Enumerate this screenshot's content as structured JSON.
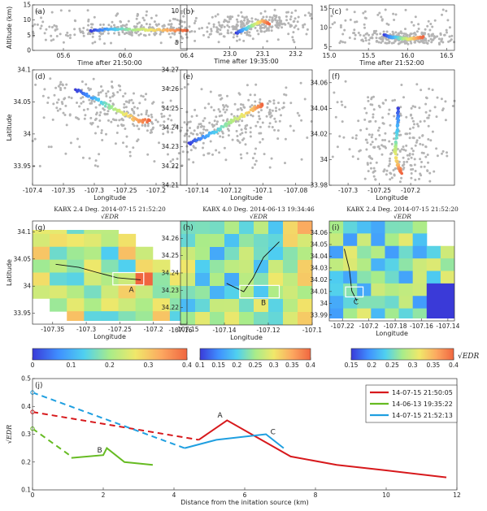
{
  "figure": {
    "colors": {
      "gray": "#b4b4b4",
      "axis": "#333333",
      "red": "#d7191c",
      "green": "#66bb22",
      "blue": "#1f9fe0"
    },
    "colormap": [
      "#3a3ad8",
      "#3f8fff",
      "#4fd0f0",
      "#a8ec8a",
      "#f0e86a",
      "#fca860",
      "#f06640"
    ]
  },
  "chart_data": [
    {
      "id": "a",
      "type": "scatter",
      "panel_label": "(a)",
      "xlabel": "Time after 21:50:00",
      "ylabel": "Altitude (km)",
      "xlim": [
        5.4,
        6.4
      ],
      "ylim": [
        0,
        15
      ],
      "xticks": [
        "05.6",
        "06.0",
        "06.4"
      ],
      "xtick_values": [
        5.6,
        6.0,
        6.4
      ],
      "yticks": [
        0,
        5,
        10,
        15
      ],
      "background_points": "gray",
      "colored_track": {
        "x": [
          5.78,
          5.85,
          5.92,
          6.0,
          6.1,
          6.2,
          6.3,
          6.4
        ],
        "y": [
          6.5,
          6.8,
          7.0,
          7.0,
          6.8,
          6.8,
          6.6,
          6.5
        ]
      }
    },
    {
      "id": "b",
      "type": "scatter",
      "panel_label": "(b)",
      "xlim": [
        22.85,
        23.25
      ],
      "ylim": [
        4,
        11
      ],
      "xticks": [
        "23.0",
        "23.1",
        "23.2"
      ],
      "xtick_values": [
        23.0,
        23.1,
        23.2
      ],
      "yticks": [
        5,
        10
      ],
      "xlabel": "Time after 19:35:00",
      "background_points": "gray",
      "colored_track": {
        "x": [
          23.02,
          23.04,
          23.06,
          23.08,
          23.1,
          23.12
        ],
        "y": [
          6.5,
          7.0,
          7.5,
          8.0,
          8.5,
          8.0
        ]
      }
    },
    {
      "id": "c",
      "type": "scatter",
      "panel_label": "(c)",
      "xlim": [
        15.0,
        16.6
      ],
      "ylim": [
        4,
        16
      ],
      "xticks": [
        "15.0",
        "15.5",
        "16.0",
        "16.5"
      ],
      "xtick_values": [
        15.0,
        15.5,
        16.0,
        16.5
      ],
      "yticks": [
        5,
        10,
        15
      ],
      "xlabel": "Time after 21:52:00",
      "background_points": "gray",
      "colored_track": {
        "x": [
          15.7,
          15.8,
          15.9,
          16.0,
          16.1,
          16.2
        ],
        "y": [
          8.0,
          7.5,
          7.2,
          7.0,
          7.2,
          7.5
        ]
      }
    },
    {
      "id": "d",
      "type": "scatter",
      "panel_label": "(d)",
      "xlabel": "Longitude",
      "ylabel": "Latitude",
      "xlim": [
        -107.4,
        -107.15
      ],
      "ylim": [
        33.92,
        34.1
      ],
      "xticks": [
        "-107.4",
        "-107.35",
        "-107.3",
        "-107.25",
        "-107.2"
      ],
      "xtick_values": [
        -107.4,
        -107.35,
        -107.3,
        -107.25,
        -107.2
      ],
      "yticks": [
        "33.95",
        "34",
        "34.05",
        "34.1"
      ],
      "ytick_values": [
        33.95,
        34.0,
        34.05,
        34.1
      ],
      "background_points": "gray",
      "colored_track": {
        "x": [
          -107.33,
          -107.31,
          -107.29,
          -107.27,
          -107.25,
          -107.23,
          -107.21
        ],
        "y": [
          34.07,
          34.06,
          34.05,
          34.04,
          34.03,
          34.02,
          34.02
        ]
      }
    },
    {
      "id": "e",
      "type": "scatter",
      "panel_label": "(e)",
      "xlabel": "Longitude",
      "xlim": [
        -107.15,
        -107.07
      ],
      "ylim": [
        34.21,
        34.27
      ],
      "xticks": [
        "-107.14",
        "-107.12",
        "-107.1",
        "-107.08"
      ],
      "xtick_values": [
        -107.14,
        -107.12,
        -107.1,
        -107.08
      ],
      "yticks": [
        "34.21",
        "34.22",
        "34.23",
        "34.24",
        "34.25",
        "34.26",
        "34.27"
      ],
      "ytick_values": [
        34.21,
        34.22,
        34.23,
        34.24,
        34.25,
        34.26,
        34.27
      ],
      "background_points": "gray",
      "colored_track": {
        "x": [
          -107.145,
          -107.135,
          -107.125,
          -107.115,
          -107.105,
          -107.1
        ],
        "y": [
          34.232,
          34.235,
          34.24,
          34.245,
          34.25,
          34.252
        ]
      }
    },
    {
      "id": "f",
      "type": "scatter",
      "panel_label": "(f)",
      "xlabel": "Longitude",
      "xlim": [
        -107.33,
        -107.13
      ],
      "ylim": [
        33.98,
        34.07
      ],
      "xticks": [
        "-107.3",
        "-107.25",
        "-107.2"
      ],
      "xtick_values": [
        -107.3,
        -107.25,
        -107.2
      ],
      "yticks": [
        "33.98",
        "34",
        "34.02",
        "34.04",
        "34.06"
      ],
      "ytick_values": [
        33.98,
        34.0,
        34.02,
        34.04,
        34.06
      ],
      "background_points": "gray",
      "colored_track": {
        "x": [
          -107.22,
          -107.22,
          -107.223,
          -107.225,
          -107.22,
          -107.215
        ],
        "y": [
          34.04,
          34.03,
          34.015,
          34.005,
          33.995,
          33.99
        ]
      }
    },
    {
      "id": "g",
      "type": "heatmap",
      "panel_label": "(g)",
      "title": "KABX 2.4 Deg. 2014-07-15 21:52:20",
      "xlabel": "Longitude",
      "ylabel": "Latitude",
      "xlim": [
        -107.38,
        -107.15
      ],
      "ylim": [
        33.93,
        34.12
      ],
      "xticks": [
        "-107.35",
        "-107.3",
        "-107.25",
        "-107.2",
        "-107.15"
      ],
      "xtick_values": [
        -107.35,
        -107.3,
        -107.25,
        -107.2,
        -107.15
      ],
      "yticks": [
        "33.95",
        "34",
        "34.05",
        "34.1"
      ],
      "ytick_values": [
        33.95,
        34.0,
        34.05,
        34.1
      ],
      "box_label": "A",
      "colorbar": {
        "ticks": [
          "0",
          "0.1",
          "0.2",
          "0.3",
          "0.4"
        ],
        "range": [
          0,
          0.4
        ]
      }
    },
    {
      "id": "h",
      "type": "heatmap",
      "panel_label": "(h)",
      "title": "KABX 4.0 Deg. 2014-06-13 19:34:46",
      "xlabel": "Longitude",
      "xlim": [
        -107.16,
        -107.1
      ],
      "ylim": [
        34.21,
        34.27
      ],
      "xticks": [
        "-107.16",
        "-107.14",
        "-107.12",
        "-107.1"
      ],
      "xtick_values": [
        -107.16,
        -107.14,
        -107.12,
        -107.1
      ],
      "yticks": [
        "34.22",
        "34.23",
        "34.24",
        "34.25",
        "34.26"
      ],
      "ytick_values": [
        34.22,
        34.23,
        34.24,
        34.25,
        34.26
      ],
      "box_label": "B",
      "colorbar": {
        "ticks": [
          "0.1",
          "0.15",
          "0.2",
          "0.25",
          "0.3",
          "0.35",
          "0.4"
        ],
        "range": [
          0.1,
          0.4
        ]
      }
    },
    {
      "id": "i",
      "type": "heatmap",
      "panel_label": "(i)",
      "title": "KABX 2.4 Deg. 2014-07-15 21:52:20",
      "xlabel": "Longitude",
      "xlim": [
        -107.23,
        -107.135
      ],
      "ylim": [
        33.985,
        34.07
      ],
      "xticks": [
        "-107.22",
        "-107.2",
        "-107.18",
        "-107.16",
        "-107.14"
      ],
      "xtick_values": [
        -107.22,
        -107.2,
        -107.18,
        -107.16,
        -107.14
      ],
      "yticks": [
        "33.99",
        "34",
        "34.01",
        "34.02",
        "34.03",
        "34.04",
        "34.05",
        "34.06"
      ],
      "ytick_values": [
        33.99,
        34.0,
        34.01,
        34.02,
        34.03,
        34.04,
        34.05,
        34.06
      ],
      "box_label": "C",
      "colorbar": {
        "ticks": [
          "0.15",
          "0.2",
          "0.25",
          "0.3",
          "0.35",
          "0.4"
        ],
        "range": [
          0.15,
          0.4
        ]
      }
    },
    {
      "id": "j",
      "type": "line",
      "panel_label": "(j)",
      "xlabel": "Distance from the initation source (km)",
      "ylabel": "√EDR",
      "colorbar_label": "√EDR",
      "xlim": [
        0,
        12
      ],
      "ylim": [
        0.1,
        0.5
      ],
      "xticks": [
        0,
        2,
        4,
        6,
        8,
        10,
        12
      ],
      "yticks": [
        "0.1",
        "0.2",
        "0.3",
        "0.4",
        "0.5"
      ],
      "ytick_values": [
        0.1,
        0.2,
        0.3,
        0.4,
        0.5
      ],
      "legend_position": "top-right",
      "series": [
        {
          "name": "14-07-15 21:50:05",
          "color": "red",
          "dashed": {
            "x": [
              0,
              4.7
            ],
            "y": [
              0.38,
              0.28
            ]
          },
          "solid": {
            "x": [
              4.7,
              5.5,
              7.3,
              8.6,
              10,
              11.7
            ],
            "y": [
              0.28,
              0.35,
              0.22,
              0.19,
              0.17,
              0.145
            ]
          }
        },
        {
          "name": "14-06-13 19:35:22",
          "color": "green",
          "dashed": {
            "x": [
              0,
              1.1
            ],
            "y": [
              0.32,
              0.22
            ]
          },
          "solid": {
            "x": [
              1.1,
              2.0,
              2.1,
              2.6,
              3.4
            ],
            "y": [
              0.215,
              0.225,
              0.25,
              0.2,
              0.19
            ]
          }
        },
        {
          "name": "14-07-15 21:52:13",
          "color": "blue",
          "dashed": {
            "x": [
              0,
              4.3
            ],
            "y": [
              0.45,
              0.25
            ]
          },
          "solid": {
            "x": [
              4.3,
              5.2,
              6.6,
              7.1
            ],
            "y": [
              0.25,
              0.28,
              0.3,
              0.25
            ]
          }
        }
      ],
      "annotations": [
        {
          "text": "A",
          "x": 5.3,
          "y": 0.36
        },
        {
          "text": "B",
          "x": 1.9,
          "y": 0.235
        },
        {
          "text": "C",
          "x": 6.8,
          "y": 0.3
        }
      ]
    }
  ]
}
